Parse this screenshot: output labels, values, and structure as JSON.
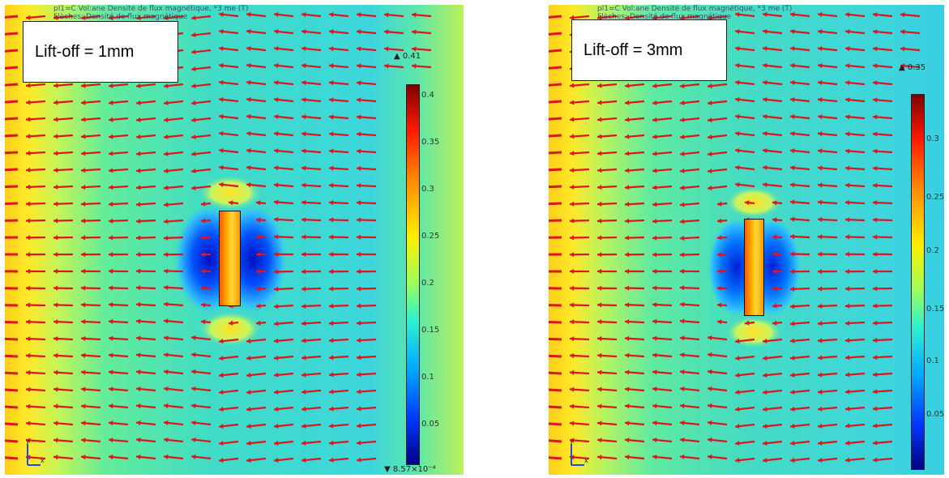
{
  "panels": [
    {
      "header_text_1": "pl1=C   Vol:ane Densité de flux magnétique, *3 me (T)",
      "header_text_2": "Flèches:  Densité de flux magnétique",
      "label": "Lift-off = 1mm",
      "max_marker": "▲ 0.41",
      "min_marker": "▼ 8.57×10⁻⁴",
      "colorbar_ticks": [
        "0.4",
        "0.35",
        "0.3",
        "0.25",
        "0.2",
        "0.15",
        "0.1",
        "0.05"
      ],
      "axis_x_label": "x",
      "axis_y_label": "y"
    },
    {
      "header_text_1": "pl1=C   Vol:ane Densité de flux magnétique, *3 me (T)",
      "header_text_2": "Flèches:  Densité de flux magnétique",
      "label": "Lift-off = 3mm",
      "max_marker": "▲ 0.35",
      "colorbar_ticks": [
        "0.3",
        "0.25",
        "0.2",
        "0.15",
        "0.1",
        "0.05"
      ],
      "axis_x_label": "x",
      "axis_y_label": "y"
    }
  ],
  "colors": {
    "arrow": "#e0141c",
    "background_field": "#3fd3e0",
    "high_field": "#ffe000",
    "low_field": "#0030ff"
  }
}
